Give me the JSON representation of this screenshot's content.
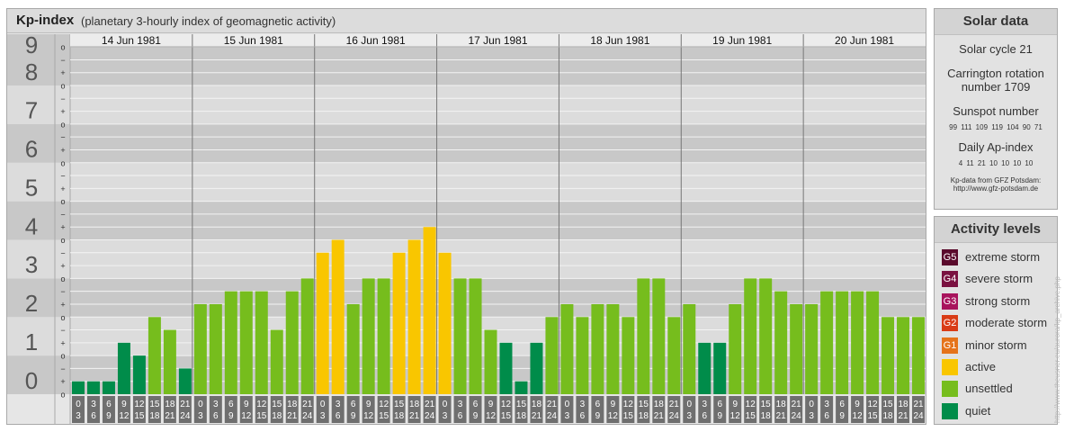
{
  "header": {
    "title": "Kp-index",
    "subtitle": "(planetary 3-hourly index of geomagnetic activity)"
  },
  "chart_data": {
    "type": "bar",
    "y_ticks": [
      "0",
      "1",
      "2",
      "3",
      "4",
      "5",
      "6",
      "7",
      "8",
      "9"
    ],
    "sub_ticks": [
      "o",
      "+",
      "−"
    ],
    "ylim": [
      0,
      9.33
    ],
    "days": [
      "14 Jun 1981",
      "15 Jun 1981",
      "16 Jun 1981",
      "17 Jun 1981",
      "18 Jun 1981",
      "19 Jun 1981",
      "20 Jun 1981"
    ],
    "interval_labels": [
      [
        "0",
        "3"
      ],
      [
        "3",
        "6"
      ],
      [
        "6",
        "9"
      ],
      [
        "9",
        "12"
      ],
      [
        "12",
        "15"
      ],
      [
        "15",
        "18"
      ],
      [
        "18",
        "21"
      ],
      [
        "21",
        "24"
      ]
    ],
    "values": [
      0.333,
      0.333,
      0.333,
      1.333,
      1.0,
      2.0,
      1.667,
      0.667,
      2.333,
      2.333,
      2.667,
      2.667,
      2.667,
      1.667,
      2.667,
      3.0,
      3.667,
      4.0,
      2.333,
      3.0,
      3.0,
      3.667,
      4.0,
      4.333,
      3.667,
      3.0,
      3.0,
      1.667,
      1.333,
      0.333,
      1.333,
      2.0,
      2.333,
      2.0,
      2.333,
      2.333,
      2.0,
      3.0,
      3.0,
      2.0,
      2.333,
      1.333,
      1.333,
      2.333,
      3.0,
      3.0,
      2.667,
      2.333,
      2.333,
      2.667,
      2.667,
      2.667,
      2.667,
      2.0,
      2.0,
      2.0
    ],
    "levels": [
      "quiet",
      "quiet",
      "quiet",
      "quiet",
      "quiet",
      "unsettled",
      "unsettled",
      "quiet",
      "unsettled",
      "unsettled",
      "unsettled",
      "unsettled",
      "unsettled",
      "unsettled",
      "unsettled",
      "unsettled",
      "active",
      "active",
      "unsettled",
      "unsettled",
      "unsettled",
      "active",
      "active",
      "active",
      "active",
      "unsettled",
      "unsettled",
      "unsettled",
      "quiet",
      "quiet",
      "quiet",
      "unsettled",
      "unsettled",
      "unsettled",
      "unsettled",
      "unsettled",
      "unsettled",
      "unsettled",
      "unsettled",
      "unsettled",
      "unsettled",
      "quiet",
      "quiet",
      "unsettled",
      "unsettled",
      "unsettled",
      "unsettled",
      "unsettled",
      "unsettled",
      "unsettled",
      "unsettled",
      "unsettled",
      "unsettled",
      "unsettled",
      "unsettled",
      "unsettled"
    ],
    "colors": {
      "quiet": "#008c4a",
      "unsettled": "#76bd1d",
      "active": "#f9c600",
      "band_dark": "#c8c8c8",
      "band_light": "#dcdcdc"
    }
  },
  "solar": {
    "title": "Solar data",
    "cycle": "Solar cycle 21",
    "rotation_line1": "Carrington rotation",
    "rotation_line2": "number 1709",
    "sunspot_label": "Sunspot number",
    "sunspot_values": "99 111 109 119 104 90 71",
    "ap_label": "Daily Ap-index",
    "ap_values": "4 11 21 10 10 10 10",
    "source_line1": "Kp-data from GFZ Potsdam:",
    "source_line2": "http://www.gfz-potsdam.de"
  },
  "activity": {
    "title": "Activity levels",
    "items": [
      {
        "badge": "G5",
        "label": "extreme storm",
        "color": "#5a0b2c"
      },
      {
        "badge": "G4",
        "label": "severe storm",
        "color": "#7a1140"
      },
      {
        "badge": "G3",
        "label": "strong storm",
        "color": "#a8135c"
      },
      {
        "badge": "G2",
        "label": "moderate storm",
        "color": "#d93c16"
      },
      {
        "badge": "G1",
        "label": "minor storm",
        "color": "#e5731b"
      },
      {
        "badge": "",
        "label": "active",
        "color": "#f9c600"
      },
      {
        "badge": "",
        "label": "unsettled",
        "color": "#76bd1d"
      },
      {
        "badge": "",
        "label": "quiet",
        "color": "#008c4a"
      }
    ]
  },
  "watermark": "http://www.theusner.eu/aurora/kp_archive.php"
}
